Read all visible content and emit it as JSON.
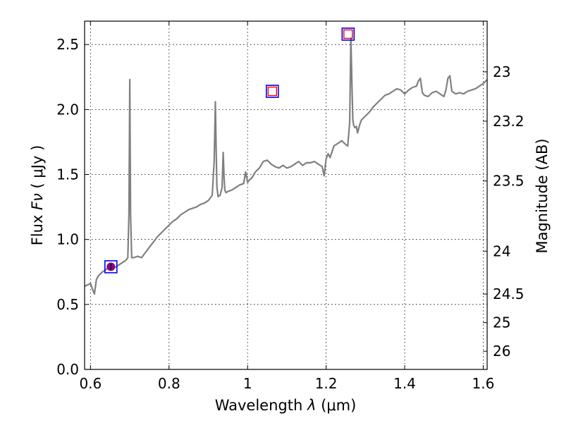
{
  "chart_data": {
    "type": "line",
    "xlabel": "Wavelength",
    "xlabel_symbol": "λ",
    "xlabel_unit": "(μm)",
    "ylabel": "Flux",
    "ylabel_symbol": "Fν",
    "ylabel_unit": "( μJy )",
    "y2label": "Magnitude (AB)",
    "xlim": [
      0.585,
      1.61
    ],
    "ylim": [
      0.0,
      2.68
    ],
    "x_ticks": [
      0.6,
      0.8,
      1.0,
      1.2,
      1.4,
      1.6
    ],
    "x_tick_labels": [
      "0.6",
      "0.8",
      "1",
      "1.2",
      "1.4",
      "1.6"
    ],
    "y_ticks": [
      0.0,
      0.5,
      1.0,
      1.5,
      2.0,
      2.5
    ],
    "y_tick_labels": [
      "0.0",
      "0.5",
      "1.0",
      "1.5",
      "2.0",
      "2.5"
    ],
    "y2_ticks": [
      {
        "label": "23",
        "flux": 2.29
      },
      {
        "label": "23.2",
        "flux": 1.91
      },
      {
        "label": "23.5",
        "flux": 1.45
      },
      {
        "label": "24",
        "flux": 0.91
      },
      {
        "label": "24.5",
        "flux": 0.58
      },
      {
        "label": "25",
        "flux": 0.36
      },
      {
        "label": "26",
        "flux": 0.14
      }
    ],
    "grid": true,
    "series": [
      {
        "kind": "line",
        "color": "#808080",
        "x": [
          0.585,
          0.6,
          0.605,
          0.61,
          0.615,
          0.62,
          0.63,
          0.64,
          0.65,
          0.66,
          0.67,
          0.68,
          0.69,
          0.695,
          0.698,
          0.7,
          0.702,
          0.705,
          0.71,
          0.72,
          0.73,
          0.74,
          0.75,
          0.76,
          0.77,
          0.78,
          0.79,
          0.8,
          0.81,
          0.82,
          0.83,
          0.84,
          0.85,
          0.86,
          0.87,
          0.88,
          0.89,
          0.9,
          0.91,
          0.915,
          0.918,
          0.92,
          0.922,
          0.925,
          0.93,
          0.935,
          0.938,
          0.94,
          0.942,
          0.945,
          0.95,
          0.96,
          0.97,
          0.98,
          0.99,
          0.995,
          1.0,
          1.005,
          1.01,
          1.02,
          1.03,
          1.04,
          1.05,
          1.06,
          1.07,
          1.08,
          1.09,
          1.1,
          1.11,
          1.12,
          1.13,
          1.14,
          1.15,
          1.16,
          1.17,
          1.18,
          1.19,
          1.195,
          1.2,
          1.205,
          1.21,
          1.22,
          1.23,
          1.24,
          1.25,
          1.255,
          1.26,
          1.263,
          1.266,
          1.268,
          1.27,
          1.273,
          1.277,
          1.28,
          1.285,
          1.29,
          1.3,
          1.31,
          1.32,
          1.33,
          1.34,
          1.35,
          1.36,
          1.37,
          1.38,
          1.39,
          1.4,
          1.41,
          1.42,
          1.43,
          1.435,
          1.44,
          1.445,
          1.45,
          1.46,
          1.47,
          1.48,
          1.49,
          1.5,
          1.505,
          1.51,
          1.515,
          1.52,
          1.53,
          1.54,
          1.55,
          1.56,
          1.57,
          1.58,
          1.59,
          1.6,
          1.61
        ],
        "y": [
          0.64,
          0.66,
          0.62,
          0.58,
          0.69,
          0.72,
          0.75,
          0.77,
          0.79,
          0.78,
          0.8,
          0.82,
          0.84,
          0.86,
          1.2,
          2.23,
          1.2,
          0.86,
          0.86,
          0.87,
          0.86,
          0.9,
          0.94,
          0.98,
          1.02,
          1.05,
          1.08,
          1.11,
          1.14,
          1.16,
          1.19,
          1.21,
          1.23,
          1.24,
          1.25,
          1.27,
          1.28,
          1.3,
          1.34,
          1.6,
          2.06,
          1.7,
          1.4,
          1.33,
          1.34,
          1.4,
          1.67,
          1.48,
          1.38,
          1.36,
          1.37,
          1.38,
          1.4,
          1.42,
          1.43,
          1.52,
          1.44,
          1.46,
          1.47,
          1.52,
          1.55,
          1.6,
          1.61,
          1.58,
          1.56,
          1.55,
          1.57,
          1.55,
          1.56,
          1.58,
          1.6,
          1.57,
          1.59,
          1.59,
          1.6,
          1.58,
          1.56,
          1.49,
          1.62,
          1.66,
          1.63,
          1.72,
          1.74,
          1.76,
          1.73,
          1.72,
          1.9,
          2.55,
          2.15,
          1.92,
          1.88,
          1.86,
          1.87,
          1.82,
          1.88,
          1.92,
          1.95,
          1.98,
          2.02,
          2.05,
          2.08,
          2.11,
          2.12,
          2.14,
          2.16,
          2.15,
          2.12,
          2.15,
          2.17,
          2.18,
          2.22,
          2.24,
          2.13,
          2.11,
          2.1,
          2.13,
          2.14,
          2.12,
          2.1,
          2.15,
          2.24,
          2.26,
          2.14,
          2.12,
          2.13,
          2.12,
          2.14,
          2.15,
          2.16,
          2.18,
          2.2,
          2.23
        ]
      }
    ],
    "photometry": [
      {
        "label": "observed",
        "x": 0.652,
        "y": 0.79,
        "yerr": 0.03,
        "marker": "circle",
        "color": "#8B008B",
        "box_color": "#0000ff"
      },
      {
        "label": "model",
        "x": 1.063,
        "y": 2.14,
        "marker": "square",
        "color": "#ff0000",
        "box_color": "#0000ff"
      },
      {
        "label": "model",
        "x": 1.256,
        "y": 2.58,
        "marker": "square",
        "color": "#ff0000",
        "box_color": "#0000ff"
      }
    ]
  }
}
